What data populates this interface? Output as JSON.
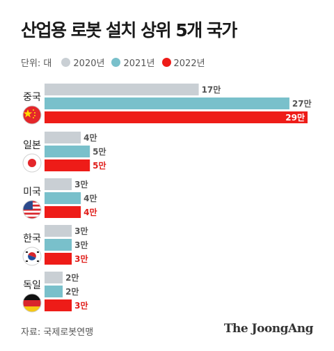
{
  "title": "산업용 로봇 설치 상위 5개 국가",
  "unit_label": "단위: 대",
  "source": "자료: 국제로봇연맹",
  "brand": "The JoongAng",
  "colors": {
    "2020년": "#c9cfd4",
    "2021년": "#79c0cb",
    "2022년": "#ee1c18"
  },
  "chart_data": {
    "type": "bar",
    "orientation": "horizontal",
    "categories": [
      "중국",
      "일본",
      "미국",
      "한국",
      "독일"
    ],
    "category_icons": [
      "china-flag-icon",
      "japan-flag-icon",
      "usa-flag-icon",
      "korea-flag-icon",
      "germany-flag-icon"
    ],
    "series": [
      {
        "name": "2020년",
        "values": [
          17,
          4,
          3,
          3,
          2
        ],
        "labels": [
          "17만",
          "4만",
          "3만",
          "3만",
          "2만"
        ]
      },
      {
        "name": "2021년",
        "values": [
          27,
          5,
          4,
          3,
          2
        ],
        "labels": [
          "27만",
          "5만",
          "4만",
          "3만",
          "2만"
        ]
      },
      {
        "name": "2022년",
        "values": [
          29,
          5,
          4,
          3,
          3
        ],
        "labels": [
          "29만",
          "5만",
          "4만",
          "3만",
          "3만"
        ]
      }
    ],
    "value_unit": "만 대",
    "xlim": [
      0,
      29
    ],
    "legend_position": "top-left",
    "grid": false
  }
}
